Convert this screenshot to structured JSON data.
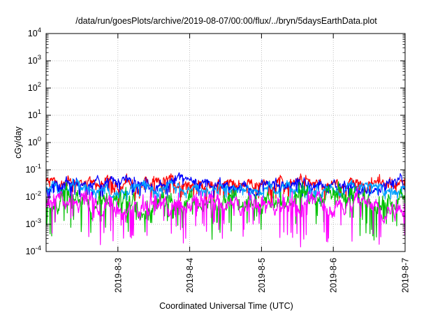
{
  "chart_data": {
    "type": "line",
    "title": "/data/run/goesPlots/archive/2019-08-07/00:00/flux/../bryn/5daysEarthData.plot",
    "xlabel": "Coordinated Universal Time (UTC)",
    "ylabel": "cGy/day",
    "yscale": "log",
    "ylim": [
      0.0001,
      10000
    ],
    "xlim": [
      "2019-08-02 00:00",
      "2019-08-07 00:00"
    ],
    "y_ticks": [
      {
        "base": "10",
        "exp": "-4"
      },
      {
        "base": "10",
        "exp": "-3"
      },
      {
        "base": "10",
        "exp": "-2"
      },
      {
        "base": "10",
        "exp": "-1"
      },
      {
        "base": "10",
        "exp": "0"
      },
      {
        "base": "10",
        "exp": "1"
      },
      {
        "base": "10",
        "exp": "2"
      },
      {
        "base": "10",
        "exp": "3"
      },
      {
        "base": "10",
        "exp": "4"
      }
    ],
    "x_ticks": [
      "2019-8-3",
      "2019-8-4",
      "2019-8-5",
      "2019-8-6",
      "2019-8-7"
    ],
    "x_tick_values": [
      1,
      2,
      3,
      4,
      5
    ],
    "grid": true,
    "series": [
      {
        "color": "#ff0000",
        "base": 0.032,
        "var": 0.55,
        "spread": 0.2,
        "values_note": ""
      },
      {
        "color": "#0000ff",
        "base": 0.026,
        "var": 0.45,
        "spread": 0.2
      },
      {
        "color": "#00a0ff",
        "base": 0.02,
        "var": 0.35,
        "spread": 0.2
      },
      {
        "color": "#00c000",
        "base": 0.0065,
        "var": 1.1,
        "spread": 0.35
      },
      {
        "color": "#ff00ff",
        "base": 0.0055,
        "var": 1.25,
        "spread": 0.35
      }
    ]
  }
}
